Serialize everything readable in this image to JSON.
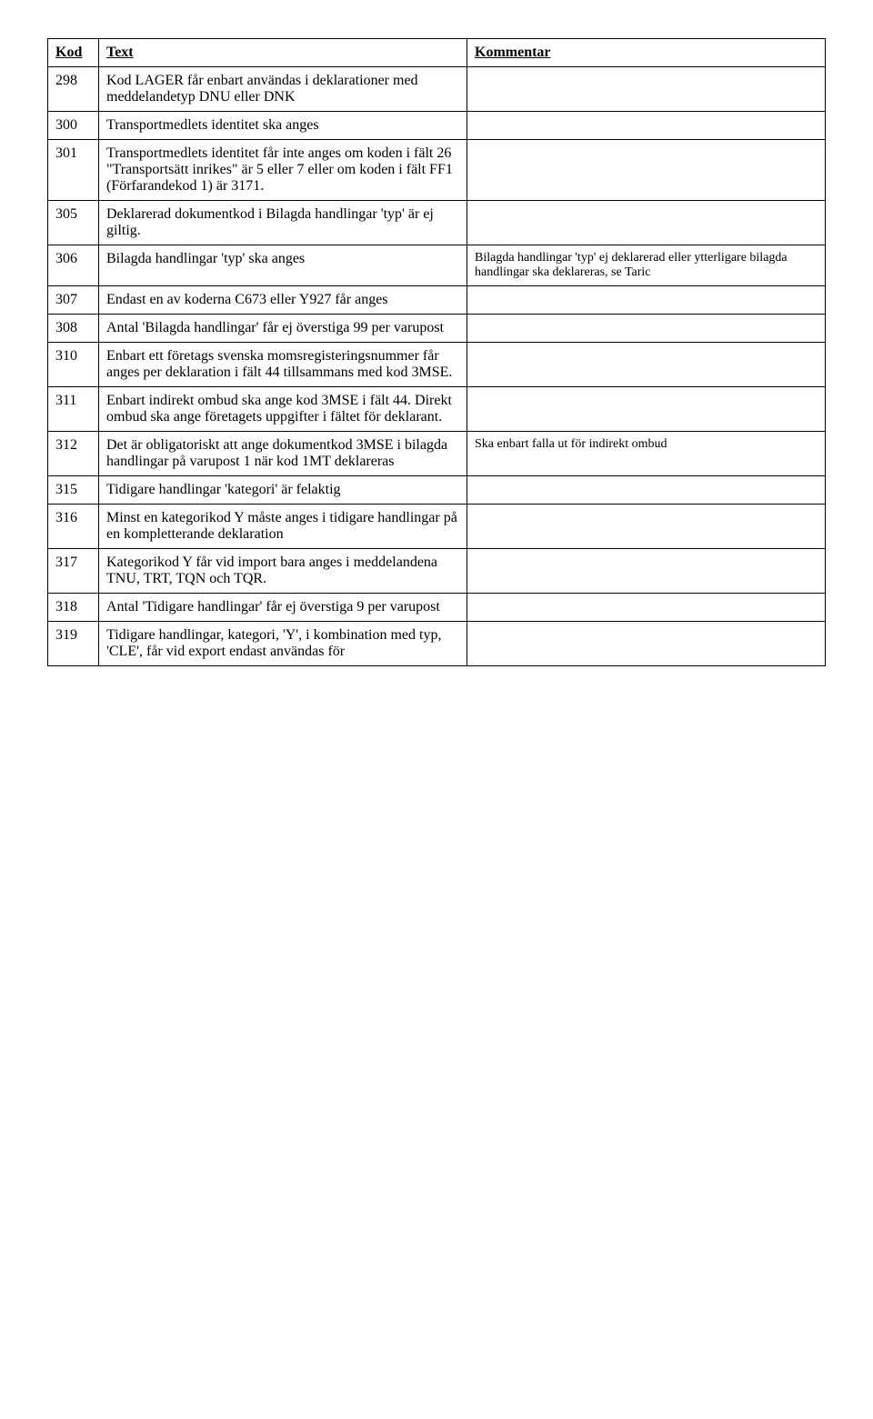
{
  "table": {
    "headers": {
      "kod": "Kod",
      "text": "Text",
      "kommentar": "Kommentar"
    },
    "rows": [
      {
        "kod": "298",
        "text": "Kod LAGER får enbart användas i deklarationer med meddelandetyp DNU eller DNK",
        "kommentar": ""
      },
      {
        "kod": "300",
        "text": "Transportmedlets identitet ska anges",
        "kommentar": ""
      },
      {
        "kod": "301",
        "text": "Transportmedlets identitet får inte anges om koden i fält 26 \"Transportsätt inrikes\" är 5 eller 7 eller om koden i fält FF1 (Förfarandekod 1) är 3171.",
        "kommentar": ""
      },
      {
        "kod": "305",
        "text": "Deklarerad dokumentkod i Bilagda handlingar 'typ' är ej giltig.",
        "kommentar": ""
      },
      {
        "kod": "306",
        "text": "Bilagda handlingar 'typ' ska anges",
        "kommentar": "Bilagda handlingar 'typ' ej deklarerad eller ytterligare bilagda handlingar ska deklareras, se Taric"
      },
      {
        "kod": "307",
        "text": "Endast en av koderna C673 eller Y927 får anges",
        "kommentar": ""
      },
      {
        "kod": "308",
        "text": "Antal 'Bilagda handlingar' får ej överstiga 99 per varupost",
        "kommentar": ""
      },
      {
        "kod": "310",
        "text": "Enbart ett företags svenska momsregisteringsnummer får anges per deklaration i fält 44 tillsammans med kod 3MSE.",
        "kommentar": ""
      },
      {
        "kod": "311",
        "text": "Enbart indirekt ombud ska ange kod 3MSE i fält 44. Direkt ombud ska ange företagets uppgifter i fältet för deklarant.",
        "kommentar": ""
      },
      {
        "kod": "312",
        "text": "Det är obligatoriskt att ange dokumentkod 3MSE  i bilagda handlingar på varupost 1 när kod 1MT deklareras",
        "kommentar": "Ska  enbart falla ut för indirekt ombud"
      },
      {
        "kod": "315",
        "text": "Tidigare handlingar 'kategori' är felaktig",
        "kommentar": ""
      },
      {
        "kod": "316",
        "text": "Minst en kategorikod Y måste anges i tidigare handlingar på en kompletterande deklaration",
        "kommentar": ""
      },
      {
        "kod": "317",
        "text": "Kategorikod Y får vid import bara anges i meddelandena TNU, TRT, TQN och TQR.",
        "kommentar": ""
      },
      {
        "kod": "318",
        "text": "Antal 'Tidigare handlingar' får ej överstiga 9 per varupost",
        "kommentar": ""
      },
      {
        "kod": "319",
        "text": "Tidigare handlingar, kategori, 'Y', i kombination med typ, 'CLE', får vid export endast användas för",
        "kommentar": ""
      }
    ]
  }
}
